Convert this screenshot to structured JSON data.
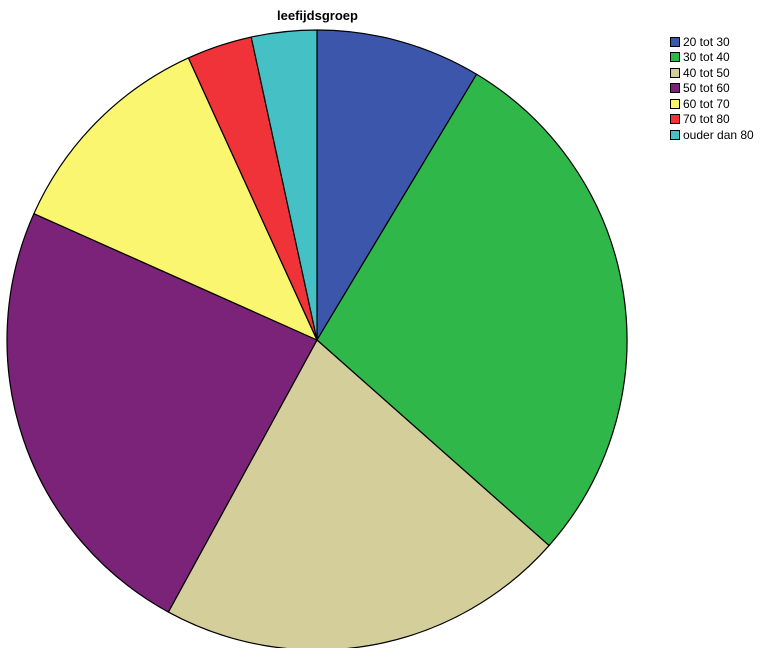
{
  "chart_data": {
    "type": "pie",
    "title": "leefijdsgroep",
    "categories": [
      "20 tot 30",
      "30 tot 40",
      "40 tot 50",
      "50 tot 60",
      "60 tot 70",
      "70 tot 80",
      "ouder dan 80"
    ],
    "values": [
      8.6,
      27.9,
      21.4,
      23.7,
      11.5,
      3.4,
      3.4
    ],
    "colors": [
      "#3c56ab",
      "#2fb74a",
      "#d4cf9a",
      "#7a2378",
      "#fbf66f",
      "#ef3338",
      "#45c1c6"
    ],
    "start_angle_deg": 0,
    "direction": "clockwise",
    "legend_position": "top-right"
  }
}
